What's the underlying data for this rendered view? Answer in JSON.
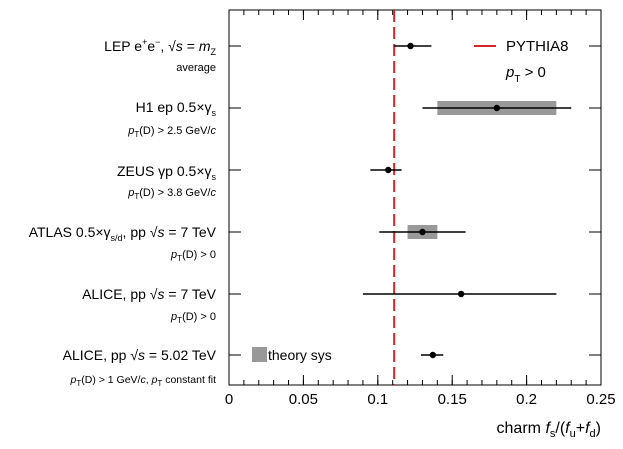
{
  "chart_data": {
    "type": "scatter",
    "title": "",
    "xlabel": "charm f_s/(f_u+f_d)",
    "ylabel": "",
    "xlim": [
      0,
      0.25
    ],
    "x_ticks": [
      0,
      0.05,
      0.1,
      0.15,
      0.2,
      0.25
    ],
    "x_tick_labels": [
      "0",
      "0.05",
      "0.1",
      "0.15",
      "0.2",
      "0.25"
    ],
    "grid": false,
    "reference_line": {
      "label": "PYTHIA8",
      "sublabel": "p_T > 0",
      "x": 0.111,
      "color": "#d62728",
      "style": "dashed"
    },
    "theory_legend_label": "theory sys",
    "measurements": [
      {
        "label": "LEP  e+e−, √s = mZ",
        "sublabel": "average",
        "value": 0.122,
        "stat_low": 0.111,
        "stat_high": 0.136,
        "sys_low": null,
        "sys_high": null
      },
      {
        "label": "H1 ep 0.5×γs",
        "sublabel": "pT(D) > 2.5 GeV/c",
        "value": 0.18,
        "stat_low": 0.13,
        "stat_high": 0.23,
        "sys_low": 0.14,
        "sys_high": 0.22
      },
      {
        "label": "ZEUS γp 0.5×γs",
        "sublabel": "pT(D) > 3.8 GeV/c",
        "value": 0.107,
        "stat_low": 0.095,
        "stat_high": 0.116,
        "sys_low": null,
        "sys_high": null
      },
      {
        "label": "ATLAS 0.5×γs/d, pp √s = 7 TeV",
        "sublabel": "pT(D) > 0",
        "value": 0.13,
        "stat_low": 0.101,
        "stat_high": 0.159,
        "sys_low": 0.12,
        "sys_high": 0.14
      },
      {
        "label": "ALICE, pp √s = 7 TeV",
        "sublabel": "pT(D) > 0",
        "value": 0.156,
        "stat_low": 0.09,
        "stat_high": 0.22,
        "sys_low": null,
        "sys_high": null
      },
      {
        "label": "ALICE, pp √s = 5.02 TeV",
        "sublabel": "pT(D) > 1 GeV/c, pT constant fit",
        "value": 0.137,
        "stat_low": 0.129,
        "stat_high": 0.144,
        "sys_low": null,
        "sys_high": null
      }
    ]
  },
  "colors": {
    "theory_band": "#999999",
    "pythia_line": "#d62728",
    "marker": "#000000"
  }
}
